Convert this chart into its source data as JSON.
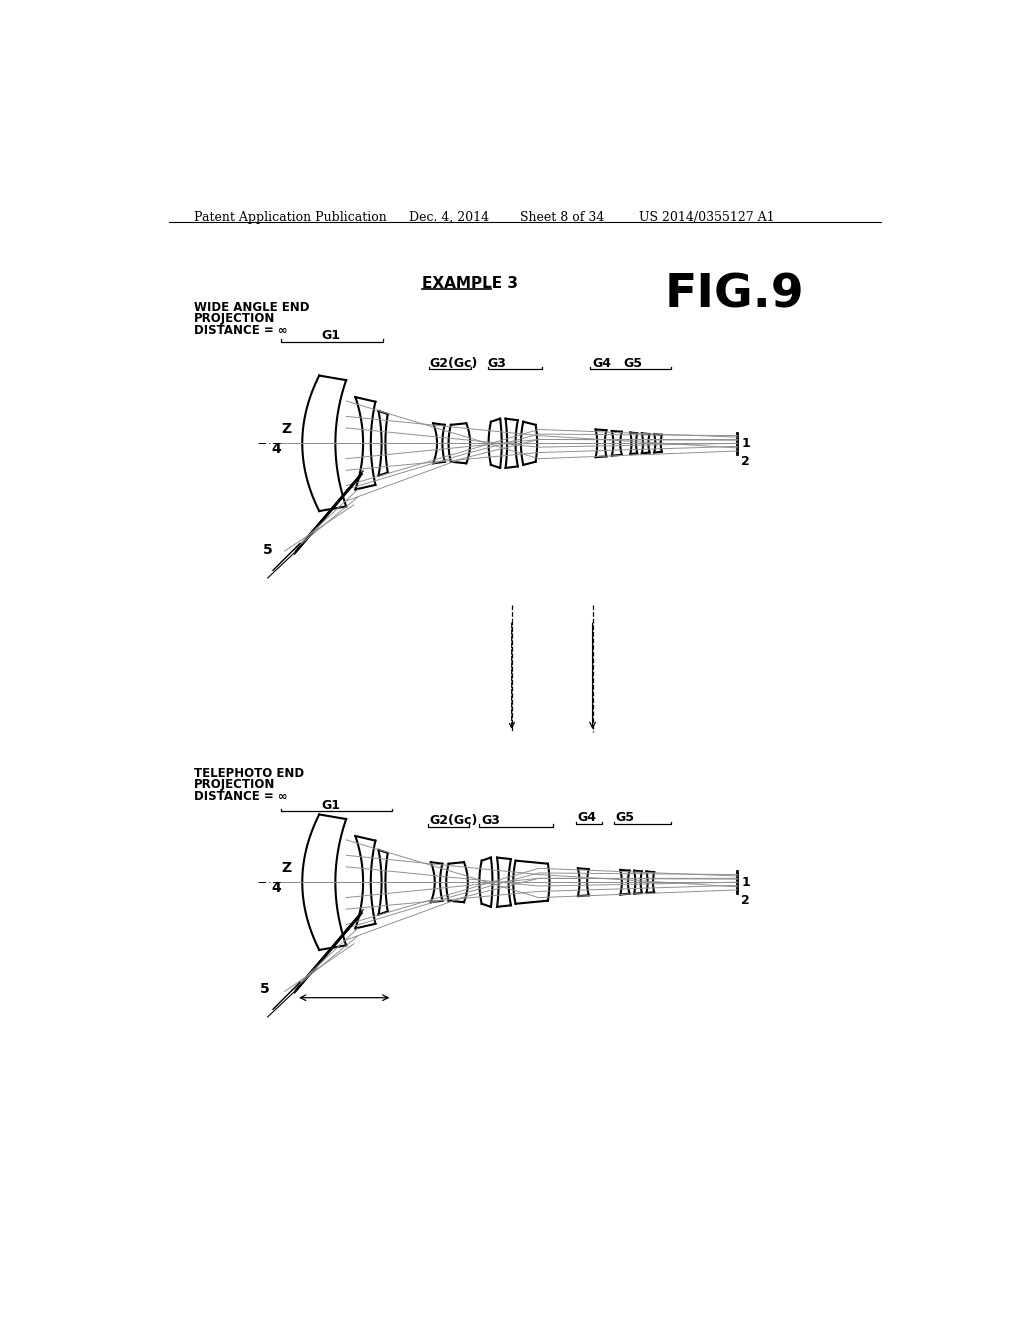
{
  "bg_color": "#ffffff",
  "header_text": "Patent Application Publication",
  "header_date": "Dec. 4, 2014",
  "header_sheet": "Sheet 8 of 34",
  "header_patent": "US 2014/0355127 A1",
  "fig_label": "FIG.9",
  "example_label": "EXAMPLE 3",
  "top_label_line1": "WIDE ANGLE END",
  "top_label_line2": "PROJECTION",
  "top_label_line3": "DISTANCE = ∞",
  "bot_label_line1": "TELEPHOTO END",
  "bot_label_line2": "PROJECTION",
  "bot_label_line3": "DISTANCE = ∞",
  "g1_label": "G1",
  "g2_label": "G2(Gc)",
  "g3_label": "G3",
  "g4_label": "G4",
  "g5_label": "G5",
  "label_z": "Z",
  "label_4": "4",
  "label_5": "5",
  "label_1": "1",
  "label_2": "2",
  "ray_color": "#909090",
  "lens_color": "#000000"
}
